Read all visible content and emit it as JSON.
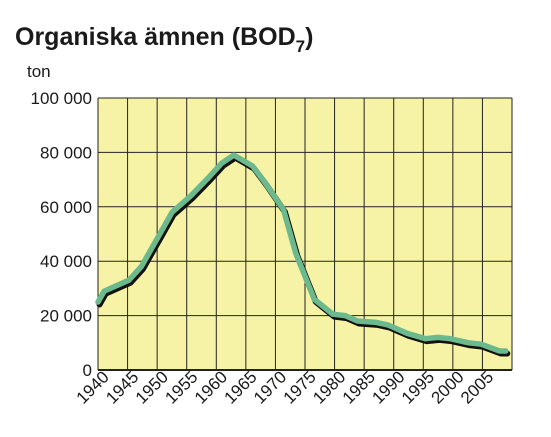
{
  "chart_data": {
    "type": "line",
    "title": "Organiska ämnen (BOD",
    "title_subscript": "7",
    "title_suffix": ")",
    "ylabel": "ton",
    "xlabel": "",
    "x_ticks": [
      "1940",
      "1945",
      "1950",
      "1955",
      "1960",
      "1965",
      "1970",
      "1975",
      "1980",
      "1985",
      "1990",
      "1995",
      "2000",
      "2005"
    ],
    "y_ticks": [
      {
        "value": 0,
        "label": "0"
      },
      {
        "value": 20000,
        "label": "20 000"
      },
      {
        "value": 40000,
        "label": "40 000"
      },
      {
        "value": 60000,
        "label": "60 000"
      },
      {
        "value": 80000,
        "label": "80 000"
      },
      {
        "value": 100000,
        "label": "100 000"
      }
    ],
    "xlim": [
      1940,
      2007
    ],
    "ylim": [
      0,
      100000
    ],
    "grid": true,
    "background_color": "#f7f3a6",
    "grid_color": "#222222",
    "line_color": "#6bb98c",
    "shadow_color": "#111111",
    "series": [
      {
        "x": [
          1940,
          1941,
          1945,
          1947,
          1950,
          1952,
          1955,
          1958,
          1960,
          1962,
          1965,
          1967,
          1970,
          1972,
          1975,
          1978,
          1980,
          1982,
          1985,
          1987,
          1990,
          1993,
          1995,
          1997,
          2000,
          2002,
          2005,
          2006
        ],
        "y": [
          25000,
          29000,
          33000,
          38000,
          50000,
          58000,
          64000,
          71000,
          76000,
          79000,
          75000,
          69000,
          59000,
          43000,
          26000,
          20500,
          20000,
          18000,
          17500,
          16500,
          13500,
          11500,
          12000,
          11500,
          10000,
          9500,
          7000,
          7000
        ]
      }
    ]
  }
}
